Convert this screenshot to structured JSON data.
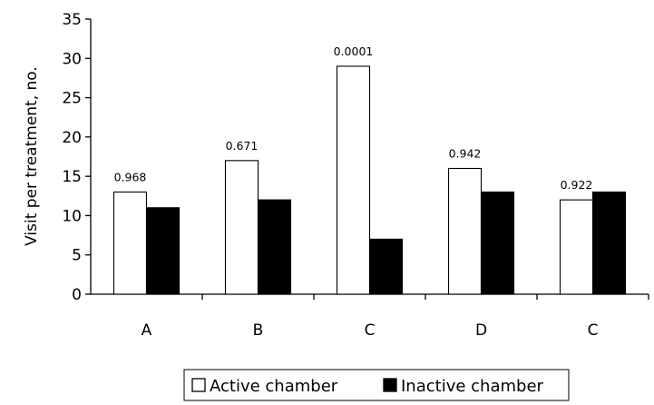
{
  "chart_data": {
    "type": "bar",
    "title": "",
    "xlabel": "",
    "ylabel": "Visit per treatment, no.",
    "ylim": [
      0,
      35
    ],
    "yticks": [
      0,
      5,
      10,
      15,
      20,
      25,
      30,
      35
    ],
    "categories": [
      "A",
      "B",
      "C",
      "D",
      "C"
    ],
    "series": [
      {
        "name": "Active chamber",
        "values": [
          13,
          17,
          29,
          16,
          12
        ],
        "color": "#ffffff",
        "stroke": "#000000"
      },
      {
        "name": "Inactive chamber",
        "values": [
          11,
          12,
          7,
          13,
          13
        ],
        "color": "#000000",
        "stroke": "#000000"
      }
    ],
    "annotations": [
      "0.968",
      "0.671",
      "0.0001",
      "0.942",
      "0.922"
    ],
    "grid": false,
    "legend_position": "bottom"
  }
}
